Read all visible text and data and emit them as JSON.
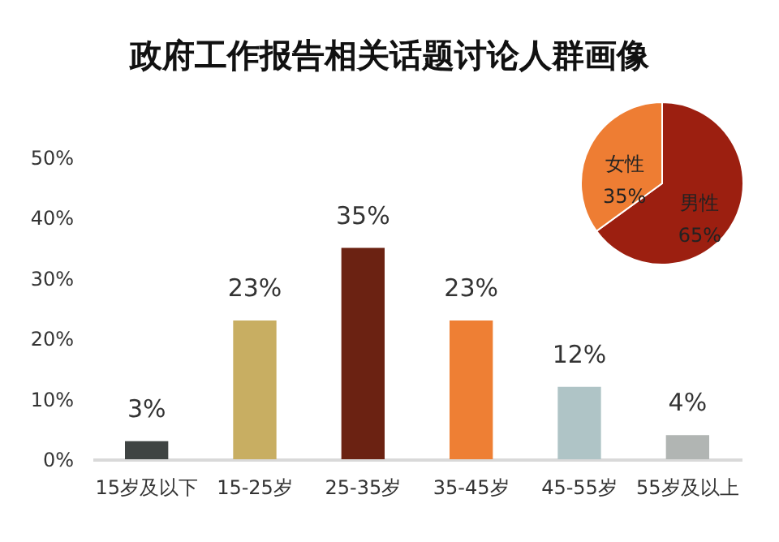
{
  "chart_data": [
    {
      "type": "bar",
      "title": "政府工作报告相关话题讨论人群画像",
      "categories": [
        "15岁及以下",
        "15-25岁",
        "25-35岁",
        "35-45岁",
        "45-55岁",
        "55岁及以上"
      ],
      "values": [
        3,
        23,
        35,
        23,
        12,
        4
      ],
      "value_labels": [
        "3%",
        "23%",
        "35%",
        "23%",
        "12%",
        "4%"
      ],
      "colors": [
        "#3f4443",
        "#c8ae62",
        "#6b2212",
        "#ee7f34",
        "#afc4c6",
        "#b1b5b3"
      ],
      "ylim": [
        0,
        50
      ],
      "yticks": [
        {
          "value": 0,
          "label": "0%"
        },
        {
          "value": 10,
          "label": "10%"
        },
        {
          "value": 20,
          "label": "20%"
        },
        {
          "value": 30,
          "label": "30%"
        },
        {
          "value": 40,
          "label": "40%"
        },
        {
          "value": 50,
          "label": "50%"
        }
      ],
      "grid": false
    },
    {
      "type": "pie",
      "categories": [
        "男性",
        "女性"
      ],
      "values": [
        65,
        35
      ],
      "value_labels": [
        "65%",
        "35%"
      ],
      "colors": [
        "#9c1f10",
        "#ee7d33"
      ]
    }
  ]
}
